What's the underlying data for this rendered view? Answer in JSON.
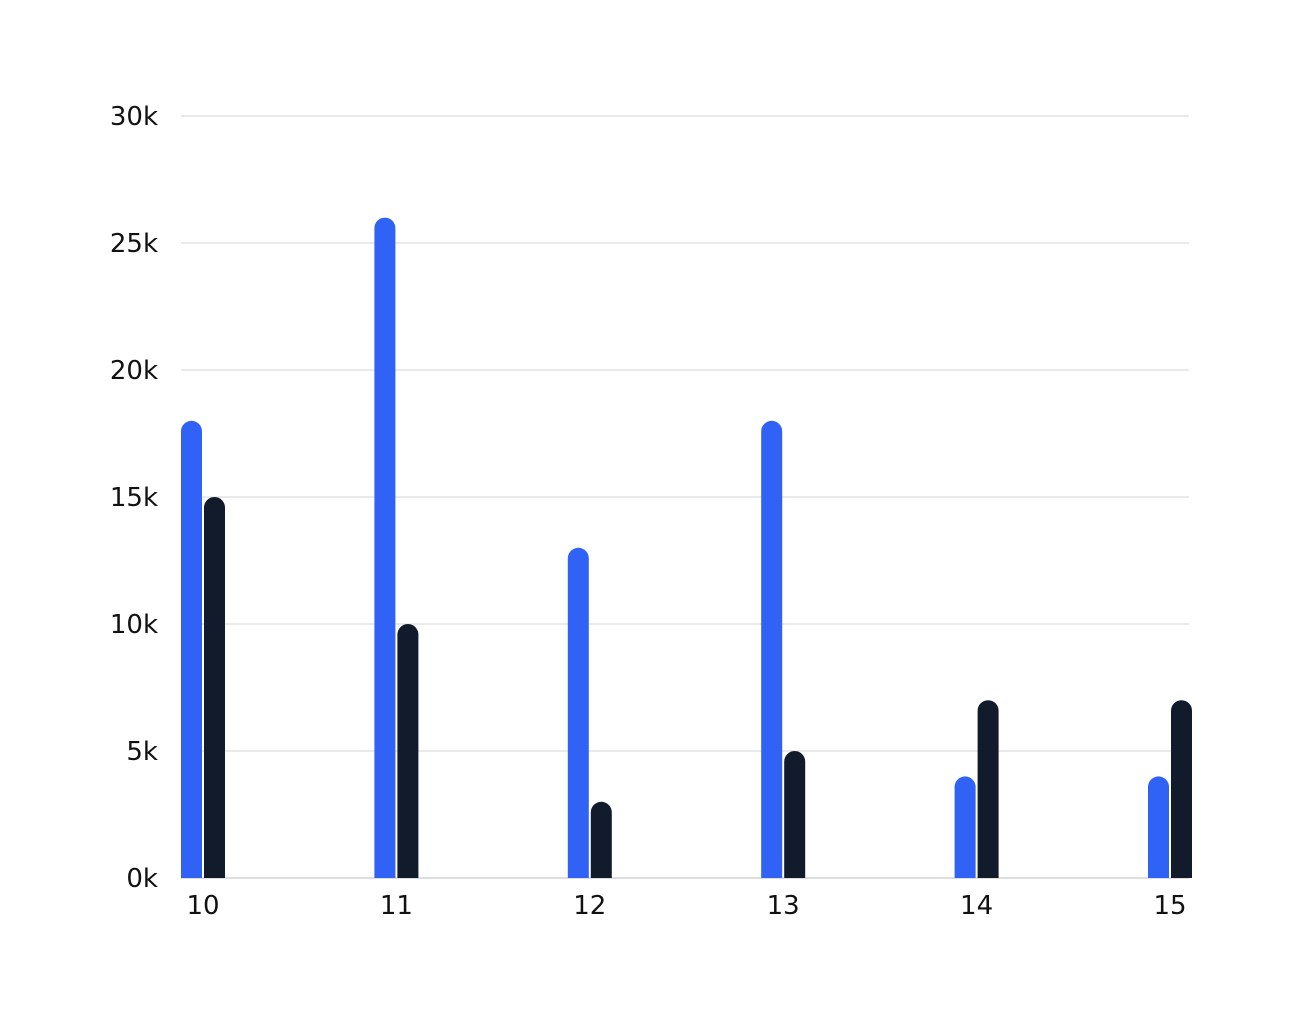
{
  "chart_data": {
    "type": "bar",
    "title": "",
    "xlabel": "",
    "ylabel": "",
    "categories": [
      "10",
      "11",
      "12",
      "13",
      "14",
      "15"
    ],
    "series": [
      {
        "color": "#3062f5",
        "values": [
          18000,
          26000,
          13000,
          18000,
          4000,
          4000
        ]
      },
      {
        "color": "#111b2b",
        "values": [
          15000,
          10000,
          3000,
          5000,
          7000,
          7000
        ]
      }
    ],
    "ylim": [
      0,
      30000
    ],
    "yticks": [
      0,
      5000,
      10000,
      15000,
      20000,
      25000,
      30000
    ],
    "ytick_labels": [
      "0k",
      "5k",
      "10k",
      "15k",
      "20k",
      "25k",
      "30k"
    ],
    "grid": "horizontal",
    "legend": "none",
    "colors": {
      "grid": "#d4d4d8",
      "text": "#111111"
    }
  }
}
